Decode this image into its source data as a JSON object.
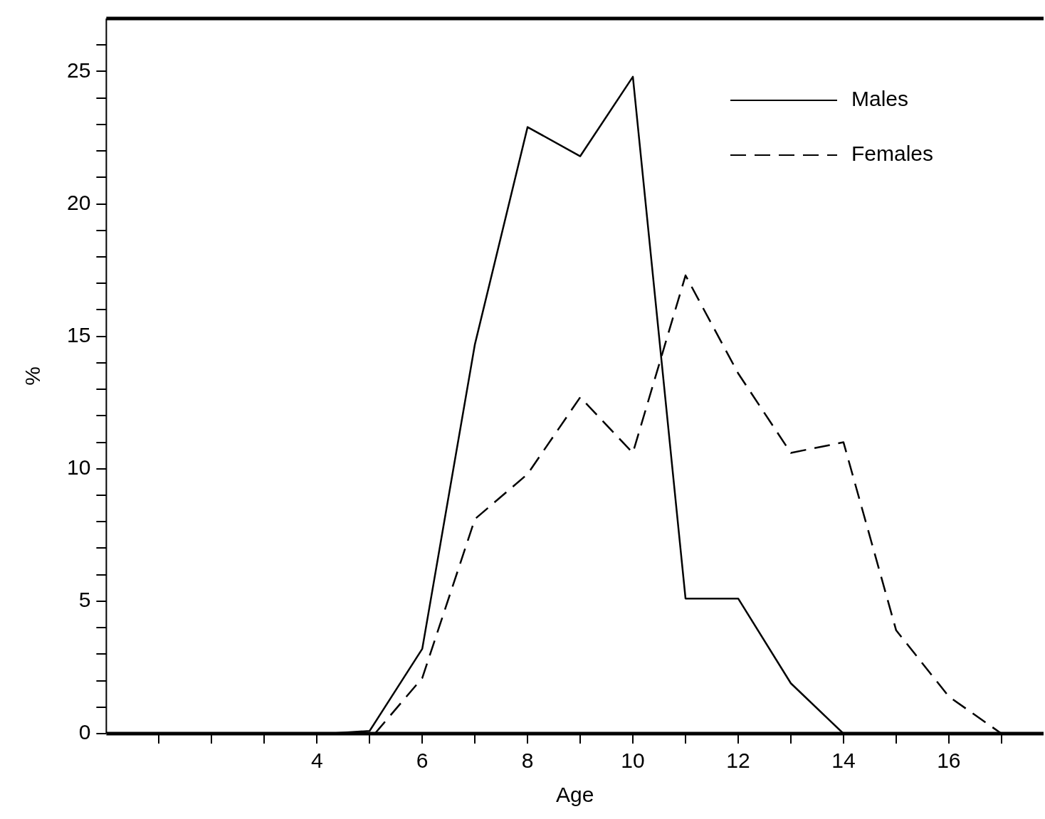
{
  "chart_data": {
    "type": "line",
    "xlabel": "Age",
    "ylabel": "%",
    "xlim": [
      0,
      17.8
    ],
    "xticks": [
      {
        "value": 1,
        "label": null
      },
      {
        "value": 2,
        "label": null
      },
      {
        "value": 3,
        "label": null
      },
      4,
      {
        "value": 5,
        "label": null
      },
      6,
      {
        "value": 7,
        "label": null
      },
      8,
      {
        "value": 9,
        "label": null
      },
      10,
      {
        "value": 11,
        "label": null
      },
      12,
      {
        "value": 13,
        "label": null
      },
      14,
      {
        "value": 15,
        "label": null
      },
      16,
      {
        "value": 17,
        "label": null
      }
    ],
    "ylim": [
      0,
      27
    ],
    "yticks": [
      0,
      {
        "value": 1,
        "label": null
      },
      {
        "value": 2,
        "label": null
      },
      {
        "value": 3,
        "label": null
      },
      {
        "value": 4,
        "label": null
      },
      5,
      {
        "value": 6,
        "label": null
      },
      {
        "value": 7,
        "label": null
      },
      {
        "value": 8,
        "label": null
      },
      {
        "value": 9,
        "label": null
      },
      10,
      {
        "value": 11,
        "label": null
      },
      {
        "value": 12,
        "label": null
      },
      {
        "value": 13,
        "label": null
      },
      {
        "value": 14,
        "label": null
      },
      15,
      {
        "value": 16,
        "label": null
      },
      {
        "value": 17,
        "label": null
      },
      {
        "value": 18,
        "label": null
      },
      {
        "value": 19,
        "label": null
      },
      20,
      {
        "value": 21,
        "label": null
      },
      {
        "value": 22,
        "label": null
      },
      {
        "value": 23,
        "label": null
      },
      {
        "value": 24,
        "label": null
      },
      25,
      {
        "value": 26,
        "label": null
      }
    ],
    "series": [
      {
        "name": "Males",
        "color": "#000000",
        "line_style": "solid",
        "x": [
          4.2,
          5,
          6,
          7,
          8,
          9,
          10,
          11,
          12,
          13,
          14
        ],
        "values": [
          0,
          0.1,
          3.2,
          14.7,
          22.9,
          21.8,
          24.8,
          5.1,
          5.1,
          1.9,
          0
        ]
      },
      {
        "name": "Females",
        "color": "#000000",
        "line_style": "dashed",
        "x": [
          5.1,
          6,
          7,
          8,
          9,
          10,
          11,
          12,
          13,
          14,
          15,
          16,
          17
        ],
        "values": [
          0,
          2.1,
          8.1,
          9.8,
          12.7,
          10.6,
          17.3,
          13.6,
          10.6,
          11,
          3.9,
          1.4,
          0
        ]
      }
    ],
    "grid": false,
    "legend": "top right",
    "marker": "none"
  }
}
